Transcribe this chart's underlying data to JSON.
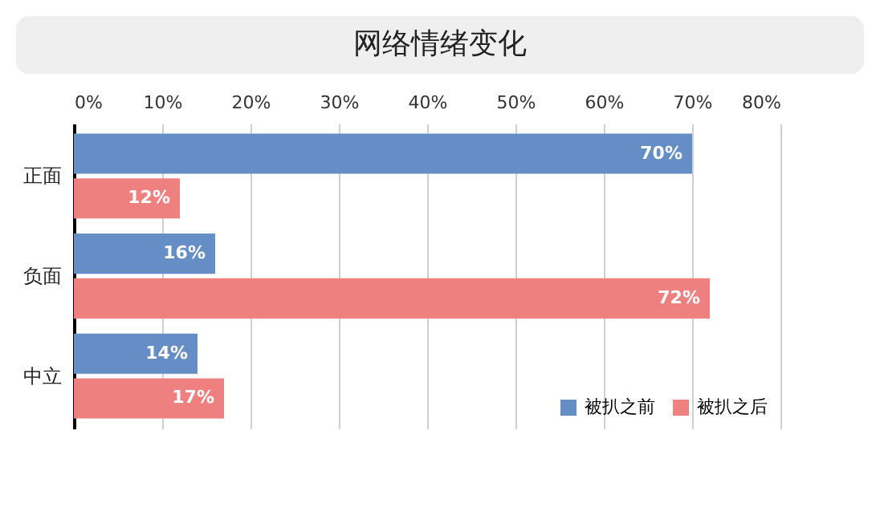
{
  "chart_data": {
    "type": "bar",
    "orientation": "horizontal",
    "title": "网络情绪变化",
    "categories": [
      "正面",
      "负面",
      "中立"
    ],
    "series": [
      {
        "name": "被扒之前",
        "color": "#658dc6",
        "values": [
          70,
          16,
          14
        ],
        "value_labels": [
          "70%",
          "16%",
          "14%"
        ]
      },
      {
        "name": "被扒之后",
        "color": "#ee8080",
        "values": [
          12,
          72,
          17
        ],
        "value_labels": [
          "12%",
          "72%",
          "17%"
        ]
      }
    ],
    "xlim": [
      0,
      80
    ],
    "xticks": [
      {
        "value": 0,
        "label": "0%"
      },
      {
        "value": 10,
        "label": "10%"
      },
      {
        "value": 20,
        "label": "20%"
      },
      {
        "value": 30,
        "label": "30%"
      },
      {
        "value": 40,
        "label": "40%"
      },
      {
        "value": 50,
        "label": "50%"
      },
      {
        "value": 60,
        "label": "60%"
      },
      {
        "value": 70,
        "label": "70%"
      },
      {
        "value": 80,
        "label": "80%"
      }
    ],
    "grid": "x",
    "legend": "bottom right"
  }
}
